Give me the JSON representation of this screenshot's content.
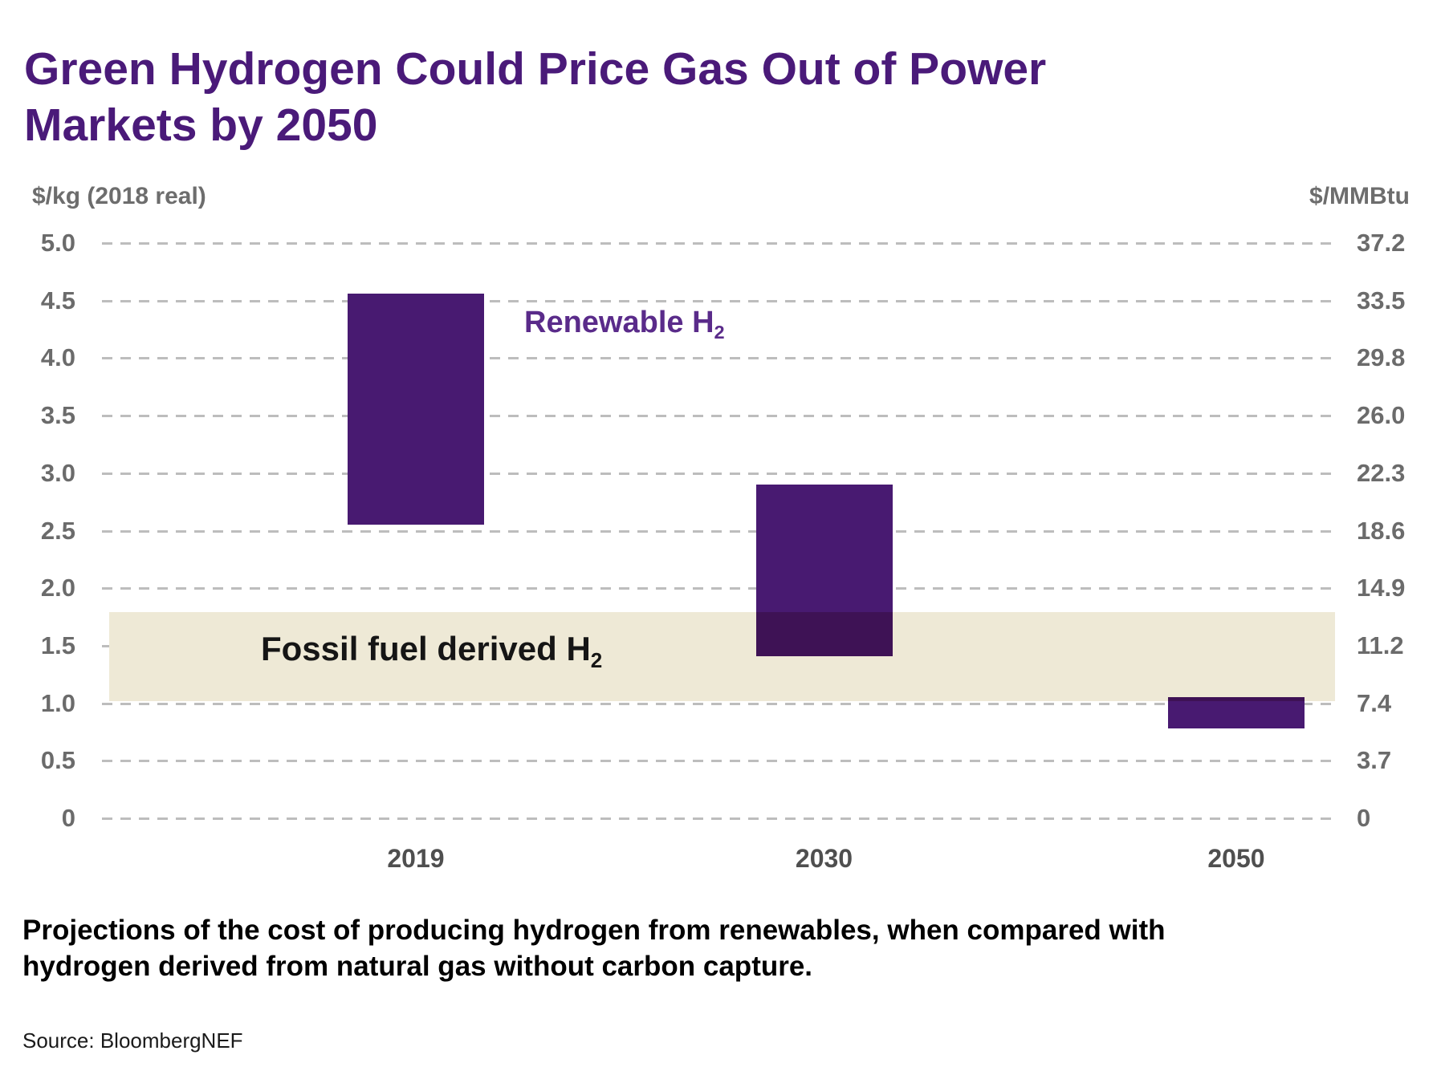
{
  "title": "Green Hydrogen Could Price Gas Out of Power Markets by 2050",
  "caption": "Projections of the cost of producing hydrogen from renewables, when compared with hydrogen derived from natural gas without carbon capture.",
  "source": "Source: BloombergNEF",
  "chart_data": {
    "type": "bar",
    "subtype": "floating-range-columns",
    "title": "Green Hydrogen Could Price Gas Out of Power Markets by 2050",
    "categories": [
      "2019",
      "2030",
      "2050"
    ],
    "series": [
      {
        "name": "Renewable H2 production cost range",
        "unit": "$/kg (2018 real)",
        "ranges": [
          [
            2.55,
            4.56
          ],
          [
            1.41,
            2.9
          ],
          [
            0.78,
            1.05
          ]
        ]
      }
    ],
    "band": {
      "label": {
        "text": "Fossil fuel derived H",
        "sub": "2"
      },
      "low": 1.02,
      "high": 1.79
    },
    "annotation": {
      "text": "Renewable H",
      "sub": "2"
    },
    "left_axis": {
      "label": "$/kg (2018 real)",
      "min": 0,
      "max": 5,
      "ticks": [
        "5.0",
        "4.5",
        "4.0",
        "3.5",
        "3.0",
        "2.5",
        "2.0",
        "1.5",
        "1.0",
        "0.5",
        "0"
      ]
    },
    "right_axis": {
      "label": "$/MMBtu",
      "min": 0,
      "max": 37.2,
      "ticks": [
        "37.2",
        "33.5",
        "29.8",
        "26.0",
        "22.3",
        "18.6",
        "14.9",
        "11.2",
        "7.4",
        "3.7",
        "0"
      ]
    },
    "grid": "dashed horizontal, on",
    "legend": "none",
    "colors": {
      "title": "#4A1A79",
      "bar": "#481A71",
      "bar_band_overlap": "#3E1255",
      "band": "#EEE9D6",
      "annotation": "#5A2B8A",
      "grid": "#BDBDBD",
      "tick_text": "#6B6B6B",
      "x_label_text": "#4F4F4F",
      "unit_text": "#6D6D6D",
      "band_label_text": "#151515"
    }
  }
}
